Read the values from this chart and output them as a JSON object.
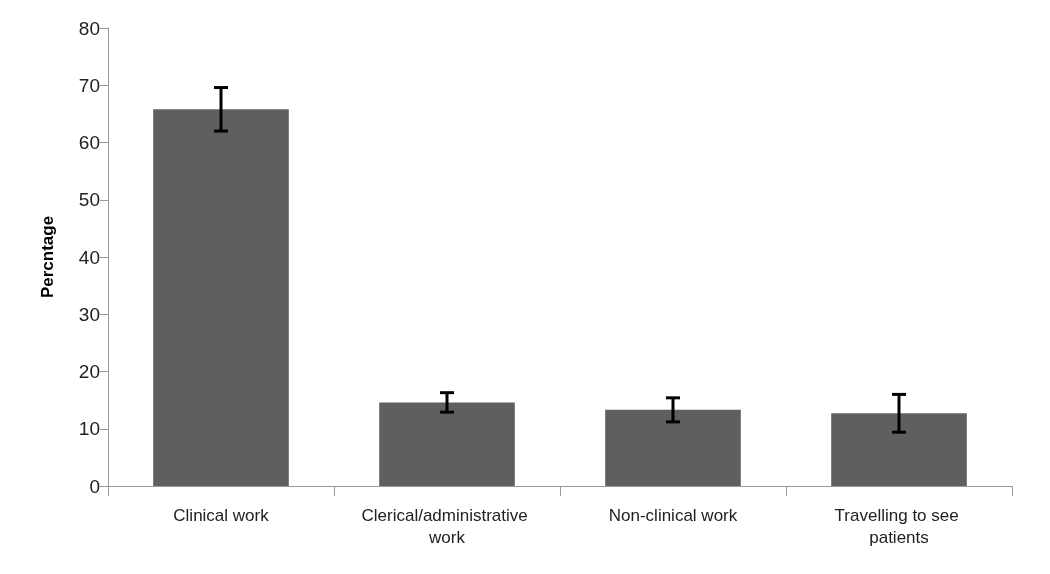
{
  "chart_data": {
    "type": "bar",
    "ylabel": "Percntage",
    "categories": [
      "Clinical work",
      "Clerical/administrative work",
      "Non-clinical work",
      "Travelling to see patients"
    ],
    "values": [
      65.8,
      14.6,
      13.3,
      12.7
    ],
    "errors": [
      3.8,
      1.7,
      2.1,
      3.3
    ],
    "color": "#5f5f5f",
    "ylim": [
      0,
      80
    ],
    "yticks": [
      0,
      10,
      20,
      30,
      40,
      50,
      60,
      70,
      80
    ],
    "grid": false
  }
}
